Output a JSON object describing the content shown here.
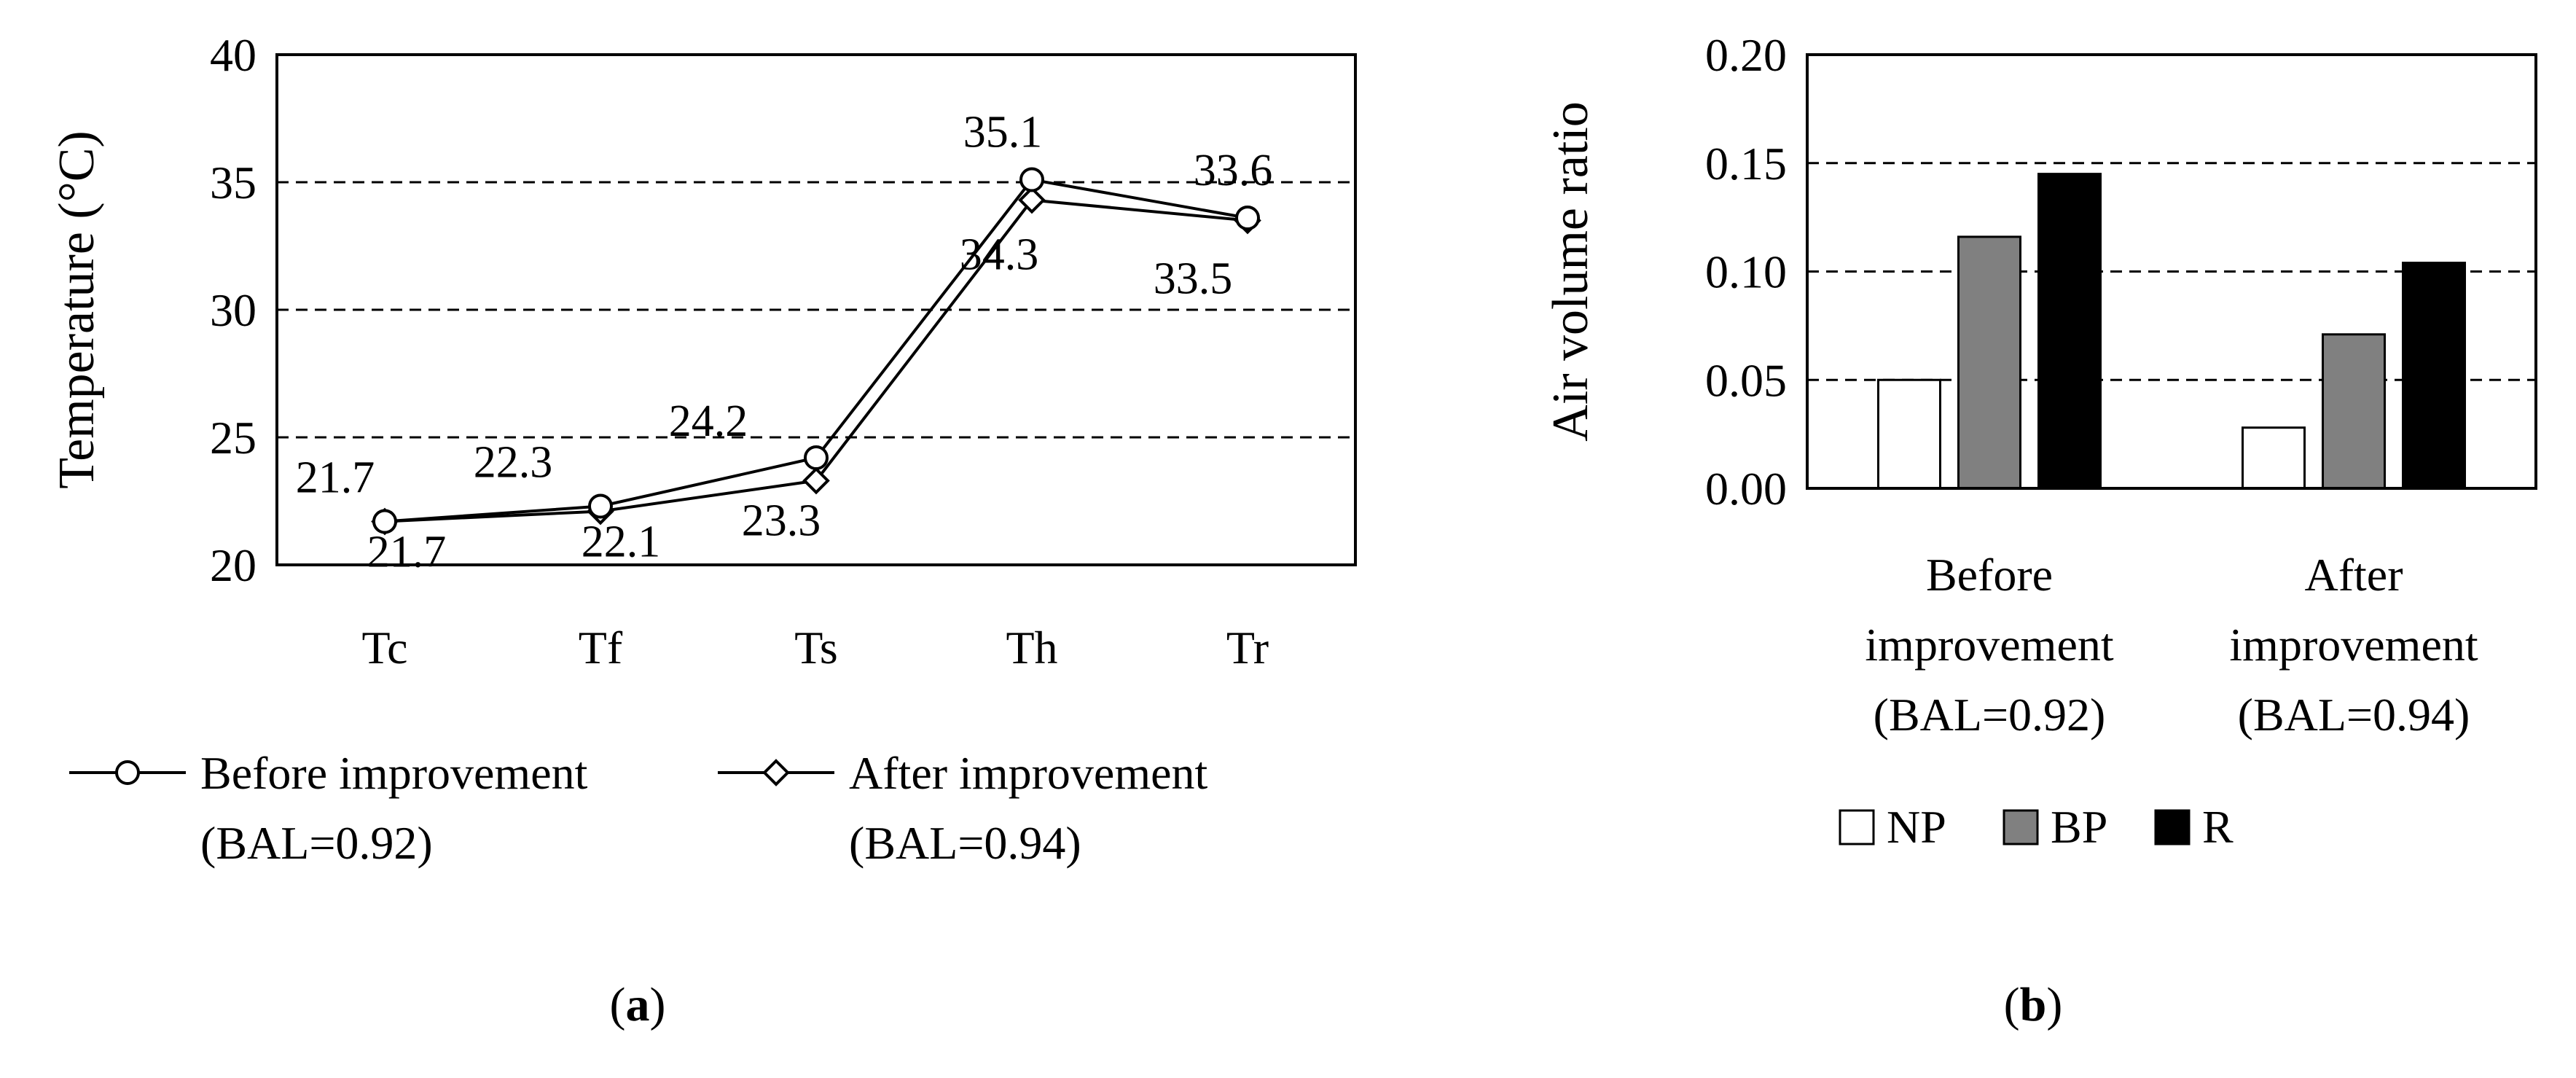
{
  "chart_data": [
    {
      "panel": "(a)",
      "type": "line",
      "ylabel": "Temperature (°C)",
      "ylim": [
        20,
        40
      ],
      "yticks": [
        "20",
        "25",
        "30",
        "35",
        "40"
      ],
      "grid": "dashed horizontal",
      "categories": [
        "Tc",
        "Tf",
        "Ts",
        "Th",
        "Tr"
      ],
      "series": [
        {
          "name": "Before improvement",
          "name_line2": "(BAL=0.92)",
          "marker": "circle",
          "values": [
            21.7,
            22.3,
            24.2,
            35.1,
            33.6
          ],
          "labels": [
            "21.7",
            "22.3",
            "24.2",
            "35.1",
            "33.6"
          ]
        },
        {
          "name": "After improvement",
          "name_line2": "(BAL=0.94)",
          "marker": "diamond",
          "values": [
            21.7,
            22.1,
            23.3,
            34.3,
            33.5
          ],
          "labels": [
            "21.7",
            "22.1",
            "23.3",
            "34.3",
            "33.5"
          ]
        }
      ],
      "legend": "bottom"
    },
    {
      "panel": "(b)",
      "type": "bar",
      "ylabel": "Air volume ratio",
      "ylim": [
        0,
        0.2
      ],
      "yticks": [
        "0.00",
        "0.05",
        "0.10",
        "0.15",
        "0.20"
      ],
      "grid": "dashed horizontal",
      "categories": [
        [
          "Before",
          "improvement",
          "(BAL=0.92)"
        ],
        [
          "After",
          "improvement",
          "(BAL=0.94)"
        ]
      ],
      "series": [
        {
          "name": "NP",
          "color": "#ffffff",
          "values": [
            0.05,
            0.028
          ]
        },
        {
          "name": "BP",
          "color": "#808080",
          "values": [
            0.116,
            0.071
          ]
        },
        {
          "name": "R",
          "color": "#000000",
          "values": [
            0.145,
            0.104
          ]
        }
      ],
      "legend": "bottom"
    }
  ]
}
